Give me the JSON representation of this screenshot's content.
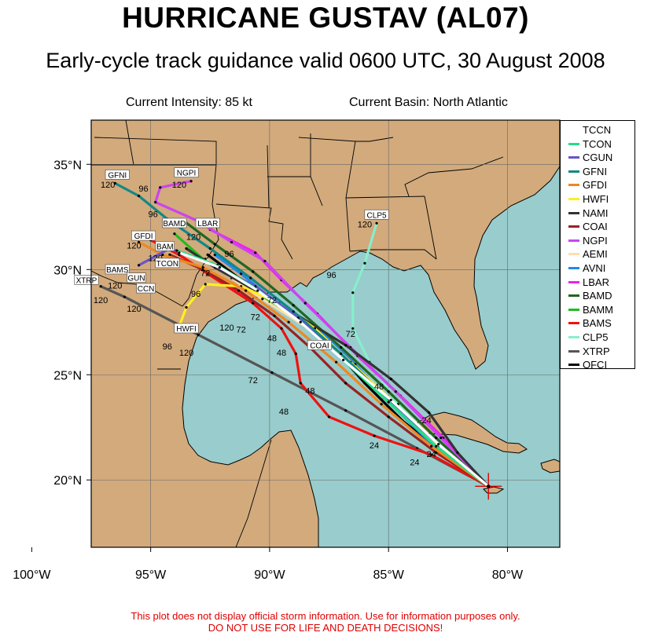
{
  "header": {
    "title": "HURRICANE GUSTAV (AL07)",
    "subtitle": "Early-cycle track guidance valid 0600 UTC, 30 August 2008",
    "intensity": "Current Intensity: 85 kt",
    "basin": "Current Basin: North Atlantic"
  },
  "disclaimer": {
    "line1": "This plot does not display official storm information. Use for information purposes only.",
    "line2": "DO NOT USE FOR LIFE AND DEATH DECISIONS!"
  },
  "map": {
    "lon_range": [
      -97.5,
      -77.8
    ],
    "lat_range": [
      16.8,
      37.1
    ],
    "lon_ticks": [
      "100°W",
      "95°W",
      "90°W",
      "85°W",
      "80°W"
    ],
    "lat_ticks": [
      "20°N",
      "25°N",
      "30°N",
      "35°N"
    ],
    "colors": {
      "land": "#d2aa7c",
      "ocean": "#99cccc",
      "storm_marker": "#e00000"
    },
    "current_position": {
      "lon": -80.8,
      "lat": 19.7
    }
  },
  "legend": [
    {
      "name": "TCCN",
      "color": "#ffffff"
    },
    {
      "name": "TCON",
      "color": "#22dd88"
    },
    {
      "name": "CGUN",
      "color": "#6655cc"
    },
    {
      "name": "GFNI",
      "color": "#118888"
    },
    {
      "name": "GFDI",
      "color": "#ee8822"
    },
    {
      "name": "HWFI",
      "color": "#ffee22"
    },
    {
      "name": "NAMI",
      "color": "#333333"
    },
    {
      "name": "COAI",
      "color": "#992222"
    },
    {
      "name": "NGPI",
      "color": "#cc44ee"
    },
    {
      "name": "AEMI",
      "color": "#ffddaa"
    },
    {
      "name": "AVNI",
      "color": "#2288ee"
    },
    {
      "name": "LBAR",
      "color": "#ee22ee"
    },
    {
      "name": "BAMD",
      "color": "#226622"
    },
    {
      "name": "BAMM",
      "color": "#22bb22"
    },
    {
      "name": "BAMS",
      "color": "#ee1111"
    },
    {
      "name": "CLP5",
      "color": "#88eecc"
    },
    {
      "name": "XTRP",
      "color": "#555555"
    },
    {
      "name": "OFCI",
      "color": "#000000"
    }
  ],
  "tracks": [
    {
      "name": "OFCI",
      "points": [
        [
          -80.8,
          19.7
        ],
        [
          -82.6,
          21.2
        ],
        [
          -84.4,
          22.8
        ],
        [
          -86.0,
          24.6
        ],
        [
          -87.4,
          26.4
        ],
        [
          -89.5,
          28.3
        ],
        [
          -91.3,
          29.6
        ],
        [
          -92.6,
          30.7
        ]
      ],
      "hours": [
        "24",
        "48",
        "72",
        "96",
        "120"
      ]
    },
    {
      "name": "XTRP",
      "points": [
        [
          -80.8,
          19.7
        ],
        [
          -83.8,
          21.5
        ],
        [
          -86.8,
          23.3
        ],
        [
          -89.9,
          25.1
        ],
        [
          -93.0,
          26.9
        ],
        [
          -96.1,
          28.7
        ],
        [
          -97.1,
          29.2
        ]
      ],
      "hours": [
        "24",
        "48",
        "72",
        "96",
        "120"
      ]
    },
    {
      "name": "CLP5",
      "points": [
        [
          -80.8,
          19.7
        ],
        [
          -83.0,
          21.6
        ],
        [
          -84.6,
          23.6
        ],
        [
          -85.8,
          25.6
        ],
        [
          -86.5,
          27.2
        ],
        [
          -86.5,
          28.9
        ],
        [
          -86.0,
          30.3
        ],
        [
          -85.5,
          32.2
        ]
      ],
      "hours": [
        "24",
        "48",
        "72",
        "96",
        "120"
      ]
    },
    {
      "name": "BAMS",
      "points": [
        [
          -80.8,
          19.7
        ],
        [
          -83.2,
          21.2
        ],
        [
          -85.6,
          22.1
        ],
        [
          -87.5,
          23.0
        ],
        [
          -88.7,
          24.6
        ],
        [
          -88.9,
          26.0
        ],
        [
          -89.5,
          27.2
        ],
        [
          -90.7,
          28.4
        ],
        [
          -92.6,
          29.8
        ],
        [
          -93.8,
          30.7
        ],
        [
          -95.0,
          31.4
        ]
      ],
      "hours": [
        "24",
        "48",
        "72",
        "96",
        "120"
      ]
    },
    {
      "name": "BAMM",
      "points": [
        [
          -80.8,
          19.7
        ],
        [
          -83.1,
          21.8
        ],
        [
          -85.2,
          23.9
        ],
        [
          -87.0,
          26.0
        ],
        [
          -89.0,
          27.8
        ],
        [
          -91.0,
          29.2
        ],
        [
          -92.8,
          30.5
        ],
        [
          -94.0,
          31.7
        ]
      ],
      "hours": [
        "24",
        "48",
        "72",
        "96",
        "120"
      ]
    },
    {
      "name": "BAMD",
      "points": [
        [
          -80.8,
          19.7
        ],
        [
          -83.0,
          22.0
        ],
        [
          -85.0,
          24.2
        ],
        [
          -87.0,
          26.3
        ],
        [
          -89.0,
          28.3
        ],
        [
          -90.7,
          29.9
        ],
        [
          -92.3,
          31.2
        ],
        [
          -93.6,
          32.3
        ]
      ],
      "hours": [
        "24",
        "48",
        "72",
        "96",
        "120"
      ]
    },
    {
      "name": "LBAR",
      "points": [
        [
          -80.8,
          19.7
        ],
        [
          -82.7,
          22.0
        ],
        [
          -84.5,
          24.0
        ],
        [
          -86.3,
          25.9
        ],
        [
          -88.0,
          27.9
        ],
        [
          -89.5,
          29.5
        ],
        [
          -90.6,
          30.8
        ],
        [
          -92.5,
          31.9
        ]
      ],
      "hours": [
        "24",
        "48",
        "72",
        "96",
        "120"
      ]
    },
    {
      "name": "AVNI",
      "points": [
        [
          -80.8,
          19.7
        ],
        [
          -83.0,
          21.5
        ],
        [
          -84.8,
          23.5
        ],
        [
          -86.4,
          25.5
        ],
        [
          -88.0,
          27.2
        ],
        [
          -89.8,
          28.5
        ],
        [
          -91.2,
          29.8
        ],
        [
          -92.3,
          30.7
        ]
      ],
      "hours": [
        "24",
        "48",
        "72",
        "96",
        "120"
      ]
    },
    {
      "name": "AEMI",
      "points": [
        [
          -80.8,
          19.7
        ],
        [
          -82.9,
          21.6
        ],
        [
          -84.9,
          23.7
        ],
        [
          -86.7,
          25.6
        ],
        [
          -88.5,
          27.3
        ],
        [
          -90.3,
          28.6
        ],
        [
          -91.6,
          29.6
        ],
        [
          -92.7,
          30.5
        ]
      ],
      "hours": [
        "24",
        "48",
        "72",
        "96",
        "120"
      ]
    },
    {
      "name": "NGPI",
      "points": [
        [
          -80.8,
          19.7
        ],
        [
          -82.8,
          22.0
        ],
        [
          -84.7,
          24.2
        ],
        [
          -86.6,
          26.3
        ],
        [
          -88.5,
          28.4
        ],
        [
          -90.2,
          30.4
        ],
        [
          -91.6,
          31.3
        ],
        [
          -93.0,
          32.3
        ],
        [
          -94.8,
          33.2
        ],
        [
          -94.6,
          33.9
        ],
        [
          -93.3,
          34.2
        ]
      ],
      "hours": [
        "24",
        "48",
        "72",
        "96",
        "120"
      ]
    },
    {
      "name": "COAI",
      "points": [
        [
          -80.8,
          19.7
        ],
        [
          -83.0,
          21.3
        ],
        [
          -85.0,
          23.0
        ],
        [
          -86.8,
          24.6
        ],
        [
          -88.3,
          26.3
        ],
        [
          -89.8,
          27.8
        ],
        [
          -91.3,
          29.0
        ],
        [
          -92.8,
          30.0
        ],
        [
          -94.2,
          30.7
        ]
      ],
      "hours": [
        "24",
        "48",
        "72",
        "96",
        "120"
      ]
    },
    {
      "name": "NAMI",
      "points": [
        [
          -80.8,
          19.7
        ],
        [
          -82.1,
          21.3
        ],
        [
          -83.3,
          23.2
        ],
        [
          -84.9,
          24.8
        ],
        [
          -86.8,
          26.4
        ],
        [
          -88.8,
          27.8
        ],
        [
          -90.6,
          29.0
        ],
        [
          -92.3,
          30.1
        ],
        [
          -93.5,
          31.0
        ]
      ],
      "hours": [
        "24",
        "48",
        "72",
        "96",
        "120"
      ]
    },
    {
      "name": "HWFI",
      "points": [
        [
          -80.8,
          19.7
        ],
        [
          -83.0,
          21.8
        ],
        [
          -84.9,
          23.8
        ],
        [
          -86.6,
          25.6
        ],
        [
          -88.1,
          27.2
        ],
        [
          -89.6,
          28.4
        ],
        [
          -91.2,
          29.2
        ],
        [
          -92.7,
          29.3
        ],
        [
          -93.5,
          28.2
        ],
        [
          -93.8,
          27.3
        ]
      ],
      "hours": [
        "24",
        "48",
        "72",
        "96",
        "120"
      ]
    },
    {
      "name": "GFDI",
      "points": [
        [
          -80.8,
          19.7
        ],
        [
          -83.2,
          21.6
        ],
        [
          -85.3,
          23.6
        ],
        [
          -87.2,
          25.6
        ],
        [
          -89.2,
          27.5
        ],
        [
          -91.0,
          29.0
        ],
        [
          -92.8,
          30.1
        ],
        [
          -94.5,
          30.7
        ],
        [
          -95.5,
          31.3
        ]
      ],
      "hours": [
        "24",
        "48",
        "72",
        "96",
        "120"
      ]
    },
    {
      "name": "GFNI",
      "points": [
        [
          -80.8,
          19.7
        ],
        [
          -83.0,
          21.8
        ],
        [
          -85.1,
          23.9
        ],
        [
          -87.0,
          26.0
        ],
        [
          -89.0,
          28.0
        ],
        [
          -90.8,
          29.6
        ],
        [
          -92.5,
          31.0
        ],
        [
          -94.3,
          32.4
        ],
        [
          -95.5,
          33.5
        ],
        [
          -96.5,
          34.1
        ]
      ],
      "hours": [
        "24",
        "48",
        "72",
        "96",
        "120"
      ]
    },
    {
      "name": "CGUN",
      "points": [
        [
          -80.8,
          19.7
        ],
        [
          -82.9,
          21.7
        ],
        [
          -85.0,
          23.8
        ],
        [
          -87.0,
          25.8
        ],
        [
          -88.8,
          27.7
        ],
        [
          -90.6,
          29.2
        ],
        [
          -92.5,
          30.3
        ],
        [
          -94.2,
          31.0
        ],
        [
          -95.5,
          30.2
        ]
      ],
      "hours": [
        "24",
        "48",
        "72",
        "96",
        "120"
      ]
    },
    {
      "name": "TCON",
      "points": [
        [
          -80.8,
          19.7
        ],
        [
          -83.0,
          21.6
        ],
        [
          -85.0,
          23.7
        ],
        [
          -87.0,
          25.8
        ],
        [
          -88.8,
          27.6
        ],
        [
          -90.6,
          29.1
        ],
        [
          -92.2,
          30.2
        ],
        [
          -93.9,
          30.9
        ]
      ],
      "hours": [
        "24",
        "48",
        "72",
        "96",
        "120"
      ]
    },
    {
      "name": "TCCN",
      "points": [
        [
          -80.8,
          19.7
        ],
        [
          -82.9,
          21.7
        ],
        [
          -84.9,
          23.8
        ],
        [
          -86.9,
          25.7
        ],
        [
          -88.7,
          27.5
        ],
        [
          -90.5,
          29.0
        ],
        [
          -92.1,
          30.1
        ],
        [
          -93.8,
          30.8
        ]
      ],
      "hours": [
        "24",
        "48",
        "72",
        "96",
        "120"
      ]
    }
  ],
  "endpoint_labels": [
    {
      "text": "GFNI",
      "lon": -96.4,
      "lat": 34.4
    },
    {
      "text": "NGPI",
      "lon": -93.5,
      "lat": 34.5
    },
    {
      "text": "CLP5",
      "lon": -85.5,
      "lat": 32.5
    },
    {
      "text": "LBAR",
      "lon": -92.6,
      "lat": 32.1
    },
    {
      "text": "BAMD",
      "lon": -94.0,
      "lat": 32.1
    },
    {
      "text": "GFDI",
      "lon": -95.3,
      "lat": 31.5
    },
    {
      "text": "BAMS",
      "lon": -96.4,
      "lat": 29.9
    },
    {
      "text": "XTRP",
      "lon": -97.7,
      "lat": 29.4
    },
    {
      "text": "CCN",
      "lon": -95.2,
      "lat": 29.0
    },
    {
      "text": "TCON",
      "lon": -94.3,
      "lat": 30.2
    },
    {
      "text": "HWFI",
      "lon": -93.5,
      "lat": 27.1
    },
    {
      "text": "COAI",
      "lon": -87.9,
      "lat": 26.3
    },
    {
      "text": "GUN",
      "lon": -95.6,
      "lat": 29.5
    },
    {
      "text": "BAM",
      "lon": -94.4,
      "lat": 31.0
    }
  ],
  "hour_labels": [
    {
      "text": "120",
      "lon": -96.8,
      "lat": 33.9
    },
    {
      "text": "96",
      "lon": -95.3,
      "lat": 33.7
    },
    {
      "text": "120",
      "lon": -93.8,
      "lat": 33.9
    },
    {
      "text": "96",
      "lon": -94.9,
      "lat": 32.5
    },
    {
      "text": "120",
      "lon": -86.0,
      "lat": 32.0
    },
    {
      "text": "120",
      "lon": -95.7,
      "lat": 31.0
    },
    {
      "text": "120",
      "lon": -93.2,
      "lat": 31.4
    },
    {
      "text": "120",
      "lon": -94.8,
      "lat": 30.4
    },
    {
      "text": "96",
      "lon": -91.7,
      "lat": 30.6
    },
    {
      "text": "120",
      "lon": -96.5,
      "lat": 29.1
    },
    {
      "text": "120",
      "lon": -97.1,
      "lat": 28.4
    },
    {
      "text": "120",
      "lon": -95.7,
      "lat": 28.0
    },
    {
      "text": "96",
      "lon": -93.1,
      "lat": 28.7
    },
    {
      "text": "96",
      "lon": -87.4,
      "lat": 29.6
    },
    {
      "text": "72",
      "lon": -92.7,
      "lat": 29.7
    },
    {
      "text": "72",
      "lon": -89.9,
      "lat": 28.4
    },
    {
      "text": "72",
      "lon": -90.6,
      "lat": 27.6
    },
    {
      "text": "72",
      "lon": -91.2,
      "lat": 27.0
    },
    {
      "text": "120",
      "lon": -91.8,
      "lat": 27.1
    },
    {
      "text": "72",
      "lon": -86.6,
      "lat": 26.8
    },
    {
      "text": "96",
      "lon": -94.3,
      "lat": 26.2
    },
    {
      "text": "120",
      "lon": -93.5,
      "lat": 25.9
    },
    {
      "text": "48",
      "lon": -89.9,
      "lat": 26.6
    },
    {
      "text": "48",
      "lon": -89.5,
      "lat": 25.9
    },
    {
      "text": "72",
      "lon": -90.7,
      "lat": 24.6
    },
    {
      "text": "48",
      "lon": -88.3,
      "lat": 24.1
    },
    {
      "text": "48",
      "lon": -89.4,
      "lat": 23.1
    },
    {
      "text": "48",
      "lon": -85.4,
      "lat": 24.3
    },
    {
      "text": "24",
      "lon": -85.6,
      "lat": 21.5
    },
    {
      "text": "24",
      "lon": -83.9,
      "lat": 20.7
    },
    {
      "text": "24",
      "lon": -83.4,
      "lat": 22.7
    },
    {
      "text": "24",
      "lon": -83.2,
      "lat": 21.1
    }
  ]
}
